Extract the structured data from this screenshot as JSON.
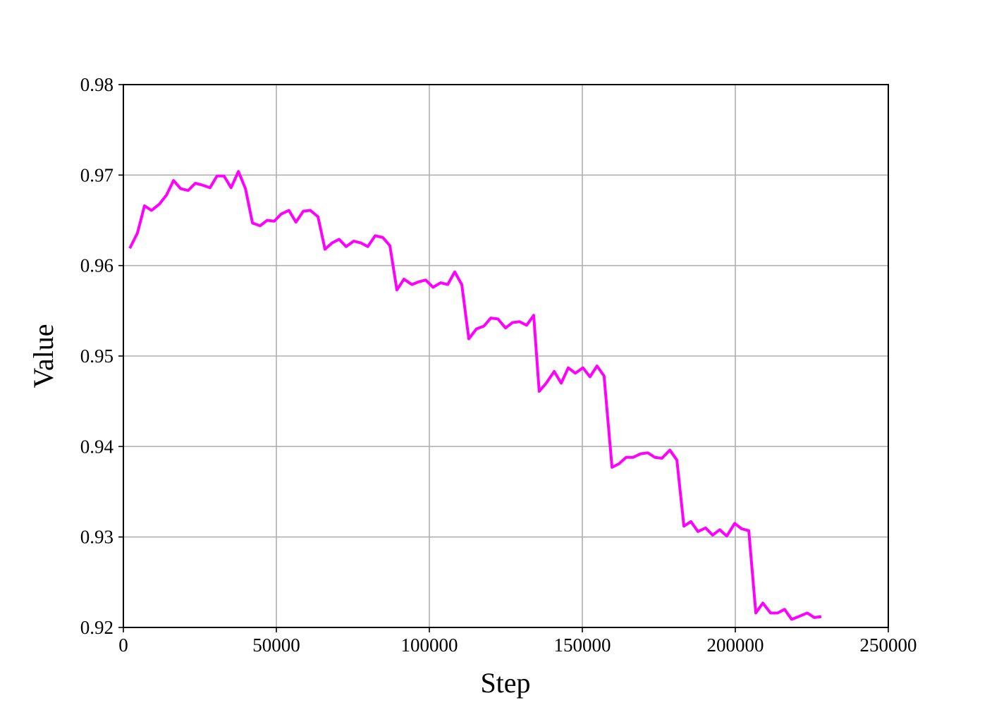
{
  "chart_data": {
    "type": "line",
    "x_label": "Step",
    "y_label": "Value",
    "x": [
      2100,
      4600,
      6900,
      9200,
      11800,
      14100,
      16400,
      18700,
      21200,
      23500,
      25800,
      28300,
      30600,
      32900,
      35200,
      37600,
      39900,
      42200,
      44700,
      47000,
      49300,
      51600,
      54100,
      56400,
      58800,
      61100,
      63600,
      65900,
      68200,
      70500,
      72800,
      75300,
      77600,
      79900,
      82300,
      84800,
      87100,
      89400,
      91700,
      94300,
      96500,
      98800,
      101200,
      103700,
      106000,
      108300,
      110600,
      112900,
      115400,
      117800,
      120100,
      122400,
      124900,
      127200,
      129500,
      131800,
      134100,
      135900,
      138200,
      140800,
      143100,
      145400,
      147700,
      150200,
      152500,
      154800,
      157100,
      159700,
      162000,
      164300,
      166600,
      169100,
      171400,
      173700,
      176000,
      178600,
      180900,
      183200,
      185500,
      187800,
      190300,
      192600,
      194900,
      197200,
      199800,
      202100,
      204400,
      206700,
      209000,
      211500,
      213800,
      216100,
      218400,
      220700,
      223500,
      225800,
      228100
    ],
    "series": [
      {
        "color": "#ff00ff",
        "values": [
          0.9619,
          0.9636,
          0.9666,
          0.9661,
          0.9668,
          0.9678,
          0.9694,
          0.9685,
          0.9683,
          0.9691,
          0.9689,
          0.9686,
          0.9699,
          0.9699,
          0.9686,
          0.9704,
          0.9685,
          0.9647,
          0.9644,
          0.965,
          0.9649,
          0.9657,
          0.9661,
          0.9648,
          0.966,
          0.9661,
          0.9654,
          0.9618,
          0.9625,
          0.9629,
          0.9621,
          0.9627,
          0.9625,
          0.9621,
          0.9633,
          0.9631,
          0.9622,
          0.9573,
          0.9585,
          0.9579,
          0.9582,
          0.9584,
          0.9576,
          0.9581,
          0.9579,
          0.9593,
          0.9579,
          0.9519,
          0.953,
          0.9533,
          0.9542,
          0.9541,
          0.9531,
          0.9537,
          0.9538,
          0.9534,
          0.9545,
          0.9461,
          0.947,
          0.9483,
          0.947,
          0.9487,
          0.9481,
          0.9487,
          0.9477,
          0.9489,
          0.9478,
          0.9377,
          0.9381,
          0.9388,
          0.9388,
          0.9392,
          0.9393,
          0.9388,
          0.9387,
          0.9396,
          0.9385,
          0.9312,
          0.9317,
          0.9306,
          0.931,
          0.9302,
          0.9308,
          0.9301,
          0.9315,
          0.9309,
          0.9307,
          0.9216,
          0.9227,
          0.9216,
          0.9216,
          0.922,
          0.9209,
          0.9212,
          0.9216,
          0.9211,
          0.9212
        ]
      }
    ],
    "xlim": [
      0,
      250000
    ],
    "xticks": [
      0,
      50000,
      100000,
      150000,
      200000,
      250000
    ],
    "ylim": [
      0.92,
      0.98
    ],
    "yticks": [
      0.92,
      0.93,
      0.94,
      0.95,
      0.96,
      0.97,
      0.98
    ],
    "grid": true
  }
}
